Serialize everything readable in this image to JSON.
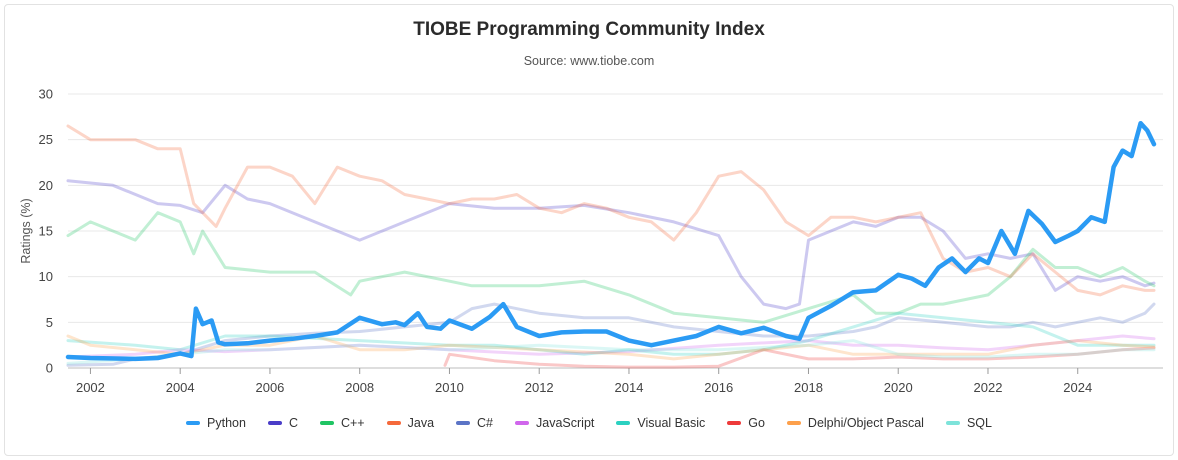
{
  "chart_data": {
    "type": "line",
    "title": "TIOBE Programming Community Index",
    "subtitle": "Source: www.tiobe.com",
    "ylabel": "Ratings (%)",
    "xlabel": "",
    "xlim": [
      2001.5,
      2025.9
    ],
    "ylim": [
      0,
      30
    ],
    "yticks": [
      "0",
      "5",
      "10",
      "15",
      "20",
      "25",
      "30"
    ],
    "xticks": [
      "2002",
      "2004",
      "2006",
      "2008",
      "2010",
      "2012",
      "2014",
      "2016",
      "2018",
      "2020",
      "2022",
      "2024"
    ],
    "grid": true,
    "legend_position": "bottom",
    "highlighted_series": "Python",
    "series": [
      {
        "name": "Python",
        "color": "#2b9bf4",
        "x": [
          2001.5,
          2002.0,
          2003.0,
          2003.5,
          2004.0,
          2004.25,
          2004.35,
          2004.5,
          2004.7,
          2004.85,
          2005.0,
          2005.5,
          2006.0,
          2006.5,
          2007.0,
          2007.5,
          2008.0,
          2008.5,
          2008.8,
          2009.0,
          2009.3,
          2009.5,
          2009.8,
          2010.0,
          2010.5,
          2010.9,
          2011.2,
          2011.5,
          2012.0,
          2012.5,
          2013.0,
          2013.5,
          2014.0,
          2014.5,
          2015.0,
          2015.5,
          2016.0,
          2016.5,
          2017.0,
          2017.5,
          2017.8,
          2018.0,
          2018.5,
          2019.0,
          2019.5,
          2020.0,
          2020.3,
          2020.6,
          2020.9,
          2021.2,
          2021.5,
          2021.8,
          2022.0,
          2022.3,
          2022.6,
          2022.9,
          2023.2,
          2023.5,
          2023.8,
          2024.0,
          2024.3,
          2024.6,
          2024.8,
          2025.0,
          2025.2,
          2025.4,
          2025.55,
          2025.7
        ],
        "values": [
          1.2,
          1.1,
          1.0,
          1.1,
          1.6,
          1.3,
          6.5,
          4.8,
          5.2,
          2.8,
          2.6,
          2.7,
          3.0,
          3.2,
          3.5,
          3.9,
          5.5,
          4.8,
          5.0,
          4.7,
          6.0,
          4.5,
          4.3,
          5.2,
          4.3,
          5.6,
          7.0,
          4.5,
          3.5,
          3.9,
          4.0,
          4.0,
          3.0,
          2.5,
          3.0,
          3.5,
          4.5,
          3.8,
          4.4,
          3.5,
          3.2,
          5.5,
          6.8,
          8.3,
          8.5,
          10.2,
          9.8,
          9.0,
          11.0,
          12.0,
          10.5,
          12.0,
          11.5,
          15.0,
          12.5,
          17.2,
          15.8,
          13.8,
          14.5,
          15.0,
          16.5,
          16.0,
          22.0,
          23.8,
          23.2,
          26.8,
          26.0,
          24.5
        ]
      },
      {
        "name": "C",
        "color": "#4a3dc8",
        "x": [
          2001.5,
          2002.5,
          2003.5,
          2004.0,
          2004.5,
          2005.0,
          2005.5,
          2006.0,
          2007.0,
          2008.0,
          2009.0,
          2010.0,
          2011.0,
          2012.0,
          2013.0,
          2014.0,
          2015.0,
          2016.0,
          2016.5,
          2017.0,
          2017.5,
          2017.8,
          2018.0,
          2018.5,
          2019.0,
          2019.5,
          2020.0,
          2020.5,
          2021.0,
          2021.5,
          2022.0,
          2022.5,
          2023.0,
          2023.5,
          2024.0,
          2024.5,
          2025.0,
          2025.5,
          2025.7
        ],
        "values": [
          20.5,
          20.0,
          18.0,
          17.8,
          17.0,
          20.0,
          18.5,
          18.0,
          16.0,
          14.0,
          16.0,
          18.0,
          17.5,
          17.5,
          17.8,
          17.0,
          16.0,
          14.5,
          10.0,
          7.0,
          6.5,
          7.0,
          14.0,
          15.0,
          16.0,
          15.5,
          16.5,
          16.5,
          15.0,
          12.0,
          12.5,
          12.0,
          12.5,
          8.5,
          10.0,
          9.5,
          10.0,
          9.0,
          9.3
        ]
      },
      {
        "name": "C++",
        "color": "#1fc463",
        "x": [
          2001.5,
          2002.0,
          2003.0,
          2003.5,
          2004.0,
          2004.3,
          2004.5,
          2005.0,
          2006.0,
          2007.0,
          2007.8,
          2008.0,
          2009.0,
          2010.0,
          2010.5,
          2011.0,
          2012.0,
          2013.0,
          2014.0,
          2015.0,
          2016.0,
          2017.0,
          2018.0,
          2019.0,
          2019.5,
          2020.0,
          2020.5,
          2021.0,
          2022.0,
          2022.5,
          2023.0,
          2023.5,
          2024.0,
          2024.5,
          2025.0,
          2025.5,
          2025.7
        ],
        "values": [
          14.5,
          16.0,
          14.0,
          17.0,
          16.0,
          12.5,
          15.0,
          11.0,
          10.5,
          10.5,
          8.0,
          9.5,
          10.5,
          9.5,
          9.0,
          9.0,
          9.0,
          9.5,
          8.0,
          6.0,
          5.5,
          5.0,
          6.5,
          8.0,
          6.0,
          6.0,
          7.0,
          7.0,
          8.0,
          10.0,
          13.0,
          11.0,
          11.0,
          10.0,
          11.0,
          9.5,
          9.0
        ]
      },
      {
        "name": "Java",
        "color": "#f5693b",
        "x": [
          2001.5,
          2002.0,
          2003.0,
          2003.5,
          2004.0,
          2004.3,
          2004.8,
          2005.0,
          2005.5,
          2006.0,
          2006.5,
          2007.0,
          2007.5,
          2008.0,
          2008.5,
          2009.0,
          2009.5,
          2010.0,
          2010.5,
          2011.0,
          2011.5,
          2012.0,
          2012.5,
          2013.0,
          2013.5,
          2014.0,
          2014.5,
          2015.0,
          2015.5,
          2016.0,
          2016.5,
          2017.0,
          2017.5,
          2018.0,
          2018.5,
          2019.0,
          2019.5,
          2020.0,
          2020.5,
          2021.0,
          2021.5,
          2022.0,
          2022.5,
          2023.0,
          2023.5,
          2024.0,
          2024.5,
          2025.0,
          2025.5,
          2025.7
        ],
        "values": [
          26.5,
          25.0,
          25.0,
          24.0,
          24.0,
          18.0,
          15.5,
          17.5,
          22.0,
          22.0,
          21.0,
          18.0,
          22.0,
          21.0,
          20.5,
          19.0,
          18.5,
          18.0,
          18.5,
          18.5,
          19.0,
          17.5,
          17.0,
          18.0,
          17.5,
          16.5,
          16.0,
          14.0,
          17.0,
          21.0,
          21.5,
          19.5,
          16.0,
          14.5,
          16.5,
          16.5,
          16.0,
          16.5,
          17.0,
          12.0,
          10.5,
          11.0,
          10.0,
          12.5,
          10.5,
          8.5,
          8.0,
          9.0,
          8.5,
          8.5
        ]
      },
      {
        "name": "C#",
        "color": "#5b74c6",
        "x": [
          2001.5,
          2002.5,
          2003.0,
          2004.0,
          2005.0,
          2006.0,
          2007.0,
          2008.0,
          2009.0,
          2010.0,
          2010.5,
          2011.0,
          2012.0,
          2013.0,
          2014.0,
          2015.0,
          2016.0,
          2017.0,
          2018.0,
          2019.0,
          2019.5,
          2020.0,
          2021.0,
          2022.0,
          2022.5,
          2023.0,
          2023.5,
          2024.0,
          2024.5,
          2025.0,
          2025.5,
          2025.7
        ],
        "values": [
          0.3,
          0.4,
          1.0,
          1.5,
          3.0,
          3.5,
          3.8,
          4.0,
          4.5,
          5.0,
          6.5,
          7.0,
          6.0,
          5.5,
          5.5,
          4.5,
          4.0,
          3.5,
          3.5,
          4.0,
          4.5,
          5.5,
          5.0,
          4.5,
          4.5,
          5.0,
          4.5,
          5.0,
          5.5,
          5.0,
          6.0,
          7.0
        ]
      },
      {
        "name": "JavaScript",
        "color": "#d066ec",
        "x": [
          2001.5,
          2003.0,
          2004.0,
          2005.0,
          2006.0,
          2008.0,
          2010.0,
          2012.0,
          2014.0,
          2016.0,
          2018.0,
          2019.0,
          2020.0,
          2021.0,
          2022.0,
          2023.0,
          2024.0,
          2025.0,
          2025.7
        ],
        "values": [
          1.2,
          1.5,
          2.0,
          1.8,
          2.0,
          2.5,
          2.0,
          1.5,
          1.8,
          2.5,
          3.0,
          2.5,
          2.5,
          2.2,
          2.0,
          2.5,
          3.0,
          3.5,
          3.2
        ]
      },
      {
        "name": "Visual Basic",
        "color": "#2bd1c1",
        "x": [
          2001.5,
          2003.0,
          2004.0,
          2005.0,
          2006.0,
          2008.0,
          2010.0,
          2011.0,
          2012.0,
          2013.0,
          2014.0,
          2015.0,
          2016.0,
          2017.0,
          2018.0,
          2019.0,
          2020.0,
          2021.0,
          2022.0,
          2023.0,
          2024.0,
          2025.0,
          2025.7
        ],
        "values": [
          3.0,
          2.5,
          2.0,
          3.5,
          3.5,
          3.0,
          2.5,
          2.5,
          2.0,
          1.5,
          2.0,
          1.5,
          1.5,
          2.0,
          3.0,
          4.5,
          6.0,
          5.5,
          5.0,
          4.5,
          2.5,
          2.5,
          2.5
        ]
      },
      {
        "name": "Go",
        "color": "#ee3a3a",
        "x": [
          2009.9,
          2010.0,
          2011.0,
          2012.0,
          2013.0,
          2014.0,
          2015.0,
          2016.0,
          2017.0,
          2018.0,
          2019.0,
          2020.0,
          2021.0,
          2022.0,
          2023.0,
          2024.0,
          2025.0,
          2025.7
        ],
        "values": [
          0.3,
          1.5,
          0.8,
          0.4,
          0.2,
          0.1,
          0.1,
          0.2,
          2.0,
          1.0,
          1.0,
          1.2,
          1.0,
          1.0,
          1.2,
          1.5,
          2.0,
          2.2
        ]
      },
      {
        "name": "Delphi/Object Pascal",
        "color": "#fda04b",
        "x": [
          2001.5,
          2002.0,
          2003.0,
          2004.0,
          2005.0,
          2006.0,
          2007.0,
          2008.0,
          2009.0,
          2010.0,
          2012.0,
          2014.0,
          2015.0,
          2016.0,
          2017.0,
          2018.0,
          2019.0,
          2020.0,
          2021.0,
          2022.0,
          2023.0,
          2024.0,
          2025.0,
          2025.7
        ],
        "values": [
          3.5,
          2.5,
          2.0,
          1.5,
          2.5,
          2.5,
          3.5,
          2.0,
          2.0,
          2.5,
          2.0,
          1.5,
          1.0,
          1.5,
          2.0,
          2.5,
          1.5,
          1.5,
          1.5,
          1.5,
          2.5,
          3.0,
          2.5,
          2.3
        ]
      },
      {
        "name": "SQL",
        "color": "#7de3da",
        "x": [
          2001.5,
          2003.0,
          2004.0,
          2005.0,
          2006.0,
          2008.0,
          2010.0,
          2012.0,
          2014.0,
          2016.0,
          2018.0,
          2019.0,
          2020.0,
          2021.0,
          2022.0,
          2023.0,
          2024.0,
          2025.0,
          2025.7
        ],
        "values": [
          0.5,
          1.0,
          1.5,
          2.0,
          2.0,
          2.5,
          2.0,
          2.5,
          2.0,
          2.0,
          2.5,
          3.0,
          1.5,
          1.2,
          1.2,
          1.5,
          1.5,
          2.0,
          2.0
        ]
      }
    ]
  }
}
